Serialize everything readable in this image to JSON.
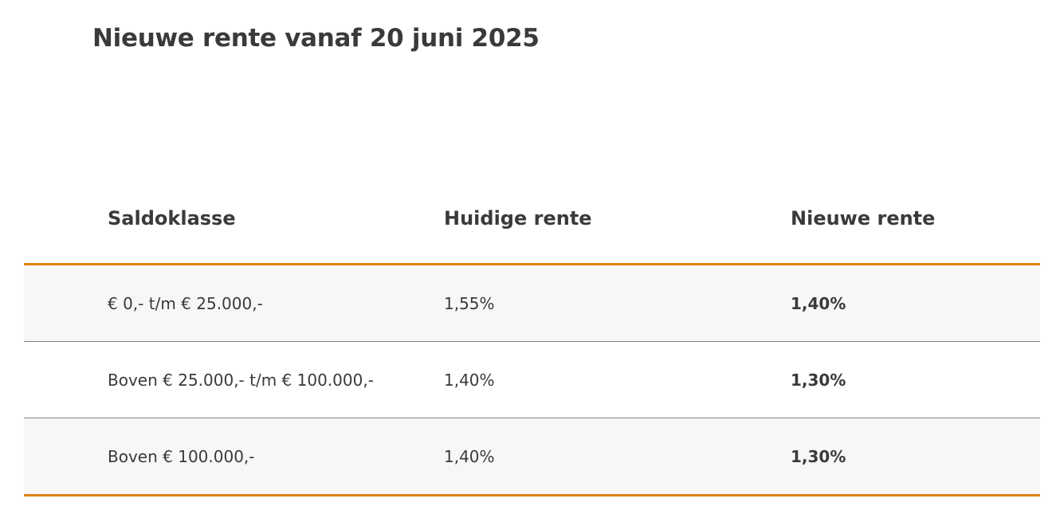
{
  "title": "Nieuwe rente vanaf 20 juni 2025",
  "table": {
    "columns": [
      "Saldoklasse",
      "Huidige rente",
      "Nieuwe rente"
    ],
    "rows": [
      {
        "saldoklasse": "€ 0,- t/m € 25.000,-",
        "huidige_rente": "1,55%",
        "nieuwe_rente": "1,40%"
      },
      {
        "saldoklasse": "Boven € 25.000,- t/m € 100.000,-",
        "huidige_rente": "1,40%",
        "nieuwe_rente": "1,30%"
      },
      {
        "saldoklasse": "Boven € 100.000,-",
        "huidige_rente": "1,40%",
        "nieuwe_rente": "1,30%"
      }
    ]
  },
  "colors": {
    "accent": "#e0820f",
    "text": "#3a3a3a",
    "row_shade": "#f7f7f7",
    "separator": "#808080"
  }
}
